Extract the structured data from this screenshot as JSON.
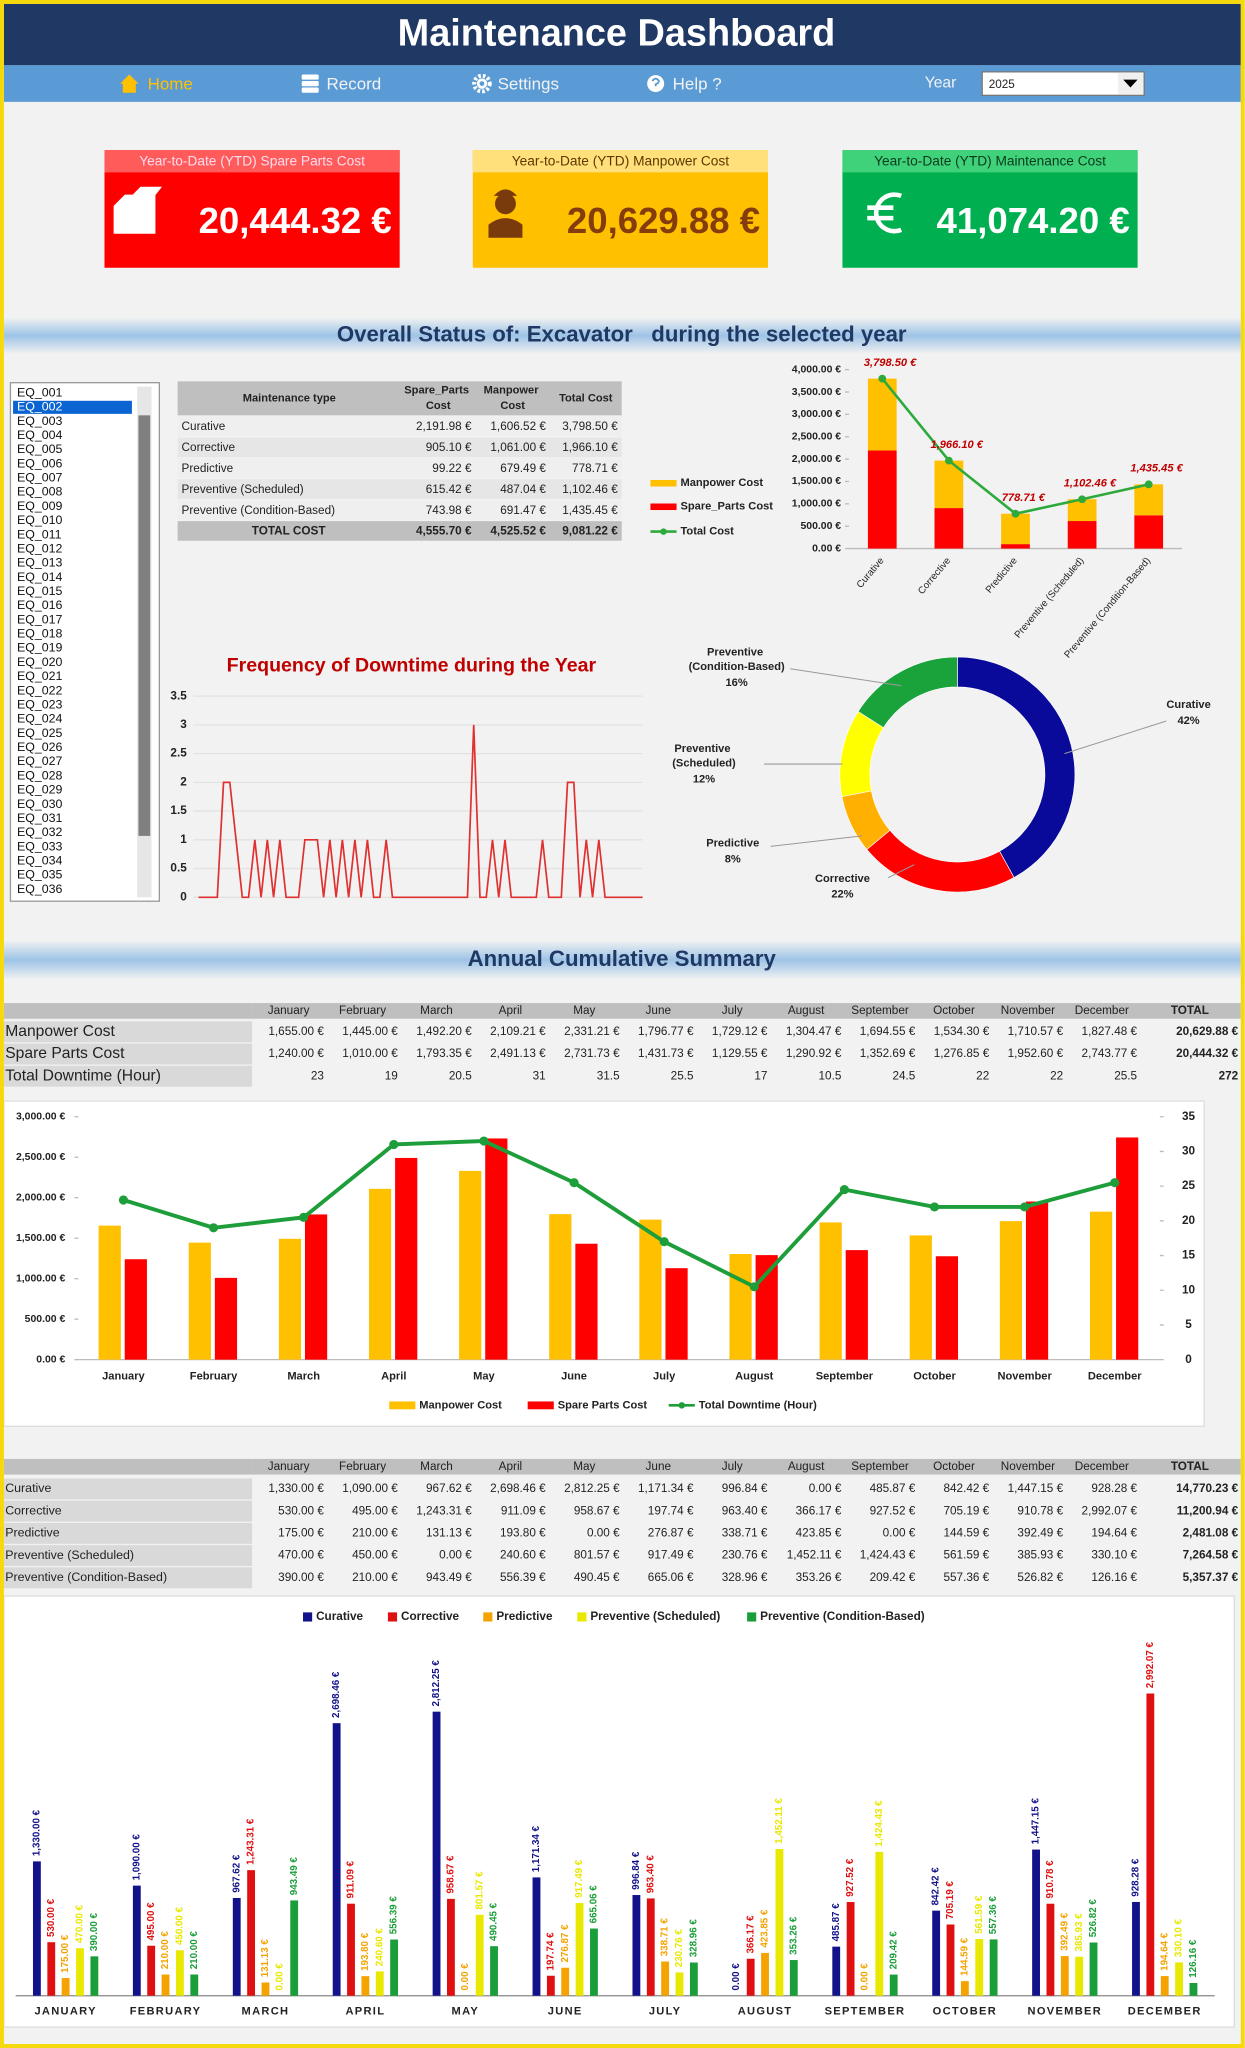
{
  "header": {
    "title": "Maintenance Dashboard"
  },
  "nav": {
    "items": [
      "Home",
      "Record",
      "Settings",
      "Help ?"
    ],
    "year_label": "Year",
    "year_value": "2025"
  },
  "kpis": [
    {
      "label": "Year-to-Date (YTD) Spare Parts Cost",
      "value": "20,444.32 €"
    },
    {
      "label": "Year-to-Date (YTD) Manpower Cost",
      "value": "20,629.88 €"
    },
    {
      "label": "Year-to-Date (YTD) Maintenance Cost",
      "value": "41,074.20 €"
    }
  ],
  "sections": {
    "overall": "Overall Status of: Excavator   during the selected year",
    "annual": "Annual Cumulative Summary"
  },
  "equipment_list": {
    "selected": "EQ_002",
    "items": [
      "EQ_001",
      "EQ_002",
      "EQ_003",
      "EQ_004",
      "EQ_005",
      "EQ_006",
      "EQ_007",
      "EQ_008",
      "EQ_009",
      "EQ_010",
      "EQ_011",
      "EQ_012",
      "EQ_013",
      "EQ_014",
      "EQ_015",
      "EQ_016",
      "EQ_017",
      "EQ_018",
      "EQ_019",
      "EQ_020",
      "EQ_021",
      "EQ_022",
      "EQ_023",
      "EQ_024",
      "EQ_025",
      "EQ_026",
      "EQ_027",
      "EQ_028",
      "EQ_029",
      "EQ_030",
      "EQ_031",
      "EQ_032",
      "EQ_033",
      "EQ_034",
      "EQ_035",
      "EQ_036"
    ]
  },
  "type_table": {
    "columns": [
      "Maintenance type",
      "Spare_Parts Cost",
      "Manpower Cost",
      "Total Cost"
    ],
    "rows": [
      [
        "Curative",
        "2,191.98 €",
        "1,606.52 €",
        "3,798.50 €"
      ],
      [
        "Corrective",
        "905.10 €",
        "1,061.00 €",
        "1,966.10 €"
      ],
      [
        "Predictive",
        "99.22 €",
        "679.49 €",
        "778.71 €"
      ],
      [
        "Preventive (Scheduled)",
        "615.42 €",
        "487.04 €",
        "1,102.46 €"
      ],
      [
        "Preventive (Condition-Based)",
        "743.98 €",
        "691.47 €",
        "1,435.45 €"
      ],
      [
        "TOTAL COST",
        "4,555.70 €",
        "4,525.52 €",
        "9,081.22 €"
      ]
    ]
  },
  "monthly_table": {
    "columns": [
      "January",
      "February",
      "March",
      "April",
      "May",
      "June",
      "July",
      "August",
      "September",
      "October",
      "November",
      "December",
      "TOTAL"
    ],
    "rows": [
      [
        "Manpower Cost",
        "1,655.00 €",
        "1,445.00 €",
        "1,492.20 €",
        "2,109.21 €",
        "2,331.21 €",
        "1,796.77 €",
        "1,729.12 €",
        "1,304.47 €",
        "1,694.55 €",
        "1,534.30 €",
        "1,710.57 €",
        "1,827.48 €",
        "20,629.88 €"
      ],
      [
        "Spare Parts Cost",
        "1,240.00 €",
        "1,010.00 €",
        "1,793.35 €",
        "2,491.13 €",
        "2,731.73 €",
        "1,431.73 €",
        "1,129.55 €",
        "1,290.92 €",
        "1,352.69 €",
        "1,276.85 €",
        "1,952.60 €",
        "2,743.77 €",
        "20,444.32 €"
      ],
      [
        "Total Downtime (Hour)",
        "23",
        "19",
        "20.5",
        "31",
        "31.5",
        "25.5",
        "17",
        "10.5",
        "24.5",
        "22",
        "22",
        "25.5",
        "272"
      ]
    ]
  },
  "type_month_table": {
    "columns": [
      "January",
      "February",
      "March",
      "April",
      "May",
      "June",
      "July",
      "August",
      "September",
      "October",
      "November",
      "December",
      "TOTAL"
    ],
    "rows": [
      [
        "Curative",
        "1,330.00 €",
        "1,090.00 €",
        "967.62 €",
        "2,698.46 €",
        "2,812.25 €",
        "1,171.34 €",
        "996.84 €",
        "0.00 €",
        "485.87 €",
        "842.42 €",
        "1,447.15 €",
        "928.28 €",
        "14,770.23 €"
      ],
      [
        "Corrective",
        "530.00 €",
        "495.00 €",
        "1,243.31 €",
        "911.09 €",
        "958.67 €",
        "197.74 €",
        "963.40 €",
        "366.17 €",
        "927.52 €",
        "705.19 €",
        "910.78 €",
        "2,992.07 €",
        "11,200.94 €"
      ],
      [
        "Predictive",
        "175.00 €",
        "210.00 €",
        "131.13 €",
        "193.80 €",
        "0.00 €",
        "276.87 €",
        "338.71 €",
        "423.85 €",
        "0.00 €",
        "144.59 €",
        "392.49 €",
        "194.64 €",
        "2,481.08 €"
      ],
      [
        "Preventive (Scheduled)",
        "470.00 €",
        "450.00 €",
        "0.00 €",
        "240.60 €",
        "801.57 €",
        "917.49 €",
        "230.76 €",
        "1,452.11 €",
        "1,424.43 €",
        "561.59 €",
        "385.93 €",
        "330.10 €",
        "7,264.58 €"
      ],
      [
        "Preventive (Condition-Based)",
        "390.00 €",
        "210.00 €",
        "943.49 €",
        "556.39 €",
        "490.45 €",
        "665.06 €",
        "328.96 €",
        "353.26 €",
        "209.42 €",
        "557.36 €",
        "526.82 €",
        "126.16 €",
        "5,357.37 €"
      ]
    ]
  },
  "chart_data": [
    {
      "type": "bar",
      "stacked": true,
      "categories": [
        "Curative",
        "Corrective",
        "Predictive",
        "Preventive (Scheduled)",
        "Preventive (Condition-Based)"
      ],
      "series": [
        {
          "name": "Manpower Cost",
          "color": "#ffc000",
          "values": [
            1606.52,
            1061.0,
            679.49,
            487.04,
            691.47
          ]
        },
        {
          "name": "Spare_Parts Cost",
          "color": "#ff0000",
          "values": [
            2191.98,
            905.1,
            99.22,
            615.42,
            743.98
          ]
        },
        {
          "name": "Total Cost",
          "type": "line",
          "color": "#2eaa3c",
          "values": [
            3798.5,
            1966.1,
            778.71,
            1102.46,
            1435.45
          ],
          "value_labels": [
            "3,798.50 €",
            "1,966.10 €",
            "778.71 €",
            "1,102.46 €",
            "1,435.45 €"
          ]
        }
      ],
      "ylim": [
        0,
        4000
      ],
      "yticks": [
        {
          "value": 0,
          "label": "0.00 €"
        },
        {
          "value": 500,
          "label": "500.00 €"
        },
        {
          "value": 1000,
          "label": "1,000.00 €"
        },
        {
          "value": 1500,
          "label": "1,500.00 €"
        },
        {
          "value": 2000,
          "label": "2,000.00 €"
        },
        {
          "value": 2500,
          "label": "2,500.00 €"
        },
        {
          "value": 3000,
          "label": "3,000.00 €"
        },
        {
          "value": 3500,
          "label": "3,500.00 €"
        },
        {
          "value": 4000,
          "label": "4,000.00 €"
        }
      ]
    },
    {
      "type": "line",
      "title": "Frequency of Downtime during the Year",
      "color": "#e03030",
      "grid": true,
      "values": [
        0,
        0,
        0,
        0,
        2,
        2,
        1,
        0,
        0,
        1,
        0,
        1,
        0,
        1,
        0,
        0,
        0,
        1,
        1,
        1,
        0,
        1,
        0,
        1,
        0,
        1,
        0,
        1,
        0,
        0,
        1,
        0,
        0,
        0,
        0,
        0,
        0,
        0,
        0,
        0,
        0,
        0,
        0,
        0,
        3,
        0,
        0,
        1,
        0,
        1,
        0,
        0,
        0,
        0,
        0,
        1,
        0,
        0,
        0,
        2,
        2,
        0,
        1,
        0,
        1,
        0,
        0,
        0,
        0,
        0,
        0,
        0
      ],
      "ylim": [
        0,
        3.5
      ],
      "yticks": [
        0,
        0.5,
        1,
        1.5,
        2,
        2.5,
        3,
        3.5
      ]
    },
    {
      "type": "donut",
      "categories": [
        "Curative",
        "Corrective",
        "Predictive",
        "Preventive (Scheduled)",
        "Preventive (Condition-Based)"
      ],
      "values": [
        42,
        22,
        8,
        12,
        16
      ],
      "value_labels": [
        "42%",
        "22%",
        "8%",
        "12%",
        "16%"
      ],
      "colors": [
        "#0a0a9a",
        "#ff0000",
        "#ffb000",
        "#ffff00",
        "#1aa33a"
      ]
    },
    {
      "type": "bar",
      "categories": [
        "January",
        "February",
        "March",
        "April",
        "May",
        "June",
        "July",
        "August",
        "September",
        "October",
        "November",
        "December"
      ],
      "series": [
        {
          "name": "Manpower Cost",
          "color": "#ffc000",
          "values": [
            1655.0,
            1445.0,
            1492.2,
            2109.21,
            2331.21,
            1796.77,
            1729.12,
            1304.47,
            1694.55,
            1534.3,
            1710.57,
            1827.48
          ]
        },
        {
          "name": "Spare Parts Cost",
          "color": "#ff0000",
          "values": [
            1240.0,
            1010.0,
            1793.35,
            2491.13,
            2731.73,
            1431.73,
            1129.55,
            1290.92,
            1352.69,
            1276.85,
            1952.6,
            2743.77
          ]
        },
        {
          "name": "Total Downtime (Hour)",
          "type": "line",
          "axis": "y2",
          "color": "#1e9e3a",
          "values": [
            23,
            19,
            20.5,
            31,
            31.5,
            25.5,
            17,
            10.5,
            24.5,
            22,
            22,
            25.5
          ]
        }
      ],
      "ylim": [
        0,
        3000
      ],
      "yticks": [
        {
          "value": 0,
          "label": "0.00 €"
        },
        {
          "value": 500,
          "label": "500.00 €"
        },
        {
          "value": 1000,
          "label": "1,000.00 €"
        },
        {
          "value": 1500,
          "label": "1,500.00 €"
        },
        {
          "value": 2000,
          "label": "2,000.00 €"
        },
        {
          "value": 2500,
          "label": "2,500.00 €"
        },
        {
          "value": 3000,
          "label": "3,000.00 €"
        }
      ],
      "y2lim": [
        0,
        35
      ],
      "y2ticks": [
        0,
        5,
        10,
        15,
        20,
        25,
        30,
        35
      ]
    },
    {
      "type": "bar",
      "legend": "top",
      "categories": [
        "JANUARY",
        "FEBRUARY",
        "MARCH",
        "APRIL",
        "MAY",
        "JUNE",
        "JULY",
        "AUGUST",
        "SEPTEMBER",
        "OCTOBER",
        "NOVEMBER",
        "DECEMBER"
      ],
      "series": [
        {
          "name": "Curative",
          "color": "#12128a",
          "values": [
            1330.0,
            1090.0,
            967.62,
            2698.46,
            2812.25,
            1171.34,
            996.84,
            0.0,
            485.87,
            842.42,
            1447.15,
            928.28
          ],
          "value_labels": [
            "1,330.00 €",
            "1,090.00 €",
            "967.62 €",
            "2,698.46 €",
            "2,812.25 €",
            "1,171.34 €",
            "996.84 €",
            "0.00 €",
            "485.87 €",
            "842.42 €",
            "1,447.15 €",
            "928.28 €"
          ]
        },
        {
          "name": "Corrective",
          "color": "#e01010",
          "values": [
            530.0,
            495.0,
            1243.31,
            911.09,
            958.67,
            197.74,
            963.4,
            366.17,
            927.52,
            705.19,
            910.78,
            2992.07
          ],
          "value_labels": [
            "530.00 €",
            "495.00 €",
            "1,243.31 €",
            "911.09 €",
            "958.67 €",
            "197.74 €",
            "963.40 €",
            "366.17 €",
            "927.52 €",
            "705.19 €",
            "910.78 €",
            "2,992.07 €"
          ]
        },
        {
          "name": "Predictive",
          "color": "#f5a300",
          "values": [
            175.0,
            210.0,
            131.13,
            193.8,
            0.0,
            276.87,
            338.71,
            423.85,
            0.0,
            144.59,
            392.49,
            194.64
          ],
          "value_labels": [
            "175.00 €",
            "210.00 €",
            "131.13 €",
            "193.80 €",
            "0.00 €",
            "276.87 €",
            "338.71 €",
            "423.85 €",
            "0.00 €",
            "144.59 €",
            "392.49 €",
            "194.64 €"
          ]
        },
        {
          "name": "Preventive (Scheduled)",
          "color": "#e8e800",
          "values": [
            470.0,
            450.0,
            0.0,
            240.6,
            801.57,
            917.49,
            230.76,
            1452.11,
            1424.43,
            561.59,
            385.93,
            330.1
          ],
          "value_labels": [
            "470.00 €",
            "450.00 €",
            "0.00 €",
            "240.60 €",
            "801.57 €",
            "917.49 €",
            "230.76 €",
            "1,452.11 €",
            "1,424.43 €",
            "561.59 €",
            "385.93 €",
            "330.10 €"
          ]
        },
        {
          "name": "Preventive (Condition-Based)",
          "color": "#1a9e3a",
          "values": [
            390.0,
            210.0,
            943.49,
            556.39,
            490.45,
            665.06,
            328.96,
            353.26,
            209.42,
            557.36,
            526.82,
            126.16
          ],
          "value_labels": [
            "390.00 €",
            "210.00 €",
            "943.49 €",
            "556.39 €",
            "490.45 €",
            "665.06 €",
            "328.96 €",
            "353.26 €",
            "209.42 €",
            "557.36 €",
            "526.82 €",
            "126.16 €"
          ]
        }
      ],
      "ylim": [
        0,
        3000
      ]
    }
  ]
}
